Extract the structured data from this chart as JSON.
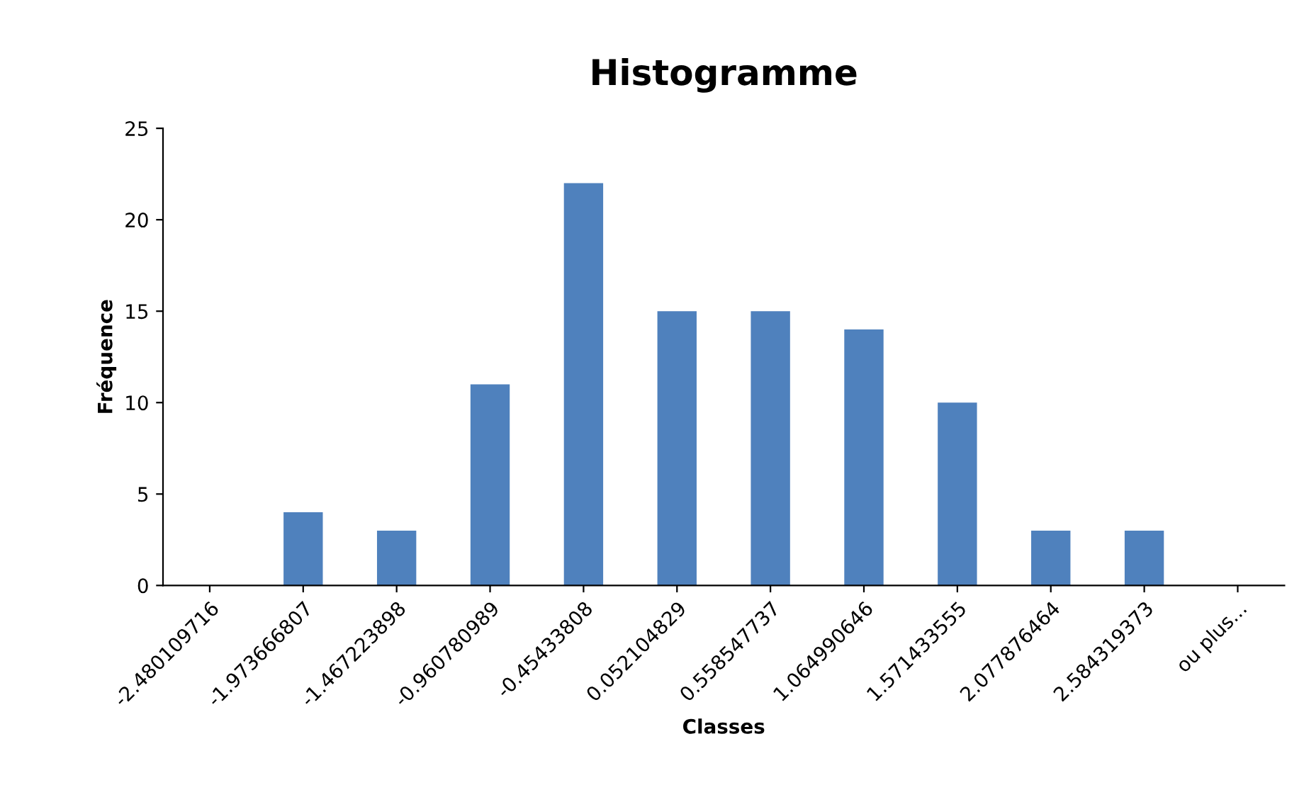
{
  "chart_data": {
    "type": "bar",
    "title": "Histogramme",
    "xlabel": "Classes",
    "ylabel": "Fréquence",
    "categories": [
      "-2.480109716",
      "-1.973666807",
      "-1.467223898",
      "-0.960780989",
      "-0.45433808",
      "0.052104829",
      "0.558547737",
      "1.064990646",
      "1.571433555",
      "2.077876464",
      "2.584319373",
      "ou plus..."
    ],
    "values": [
      0,
      4,
      3,
      11,
      22,
      15,
      15,
      14,
      10,
      3,
      3,
      0
    ],
    "color": "#4f81bd",
    "ylim": [
      0,
      25
    ],
    "yticks": [
      0,
      5,
      10,
      15,
      20,
      25
    ],
    "grid": false
  }
}
